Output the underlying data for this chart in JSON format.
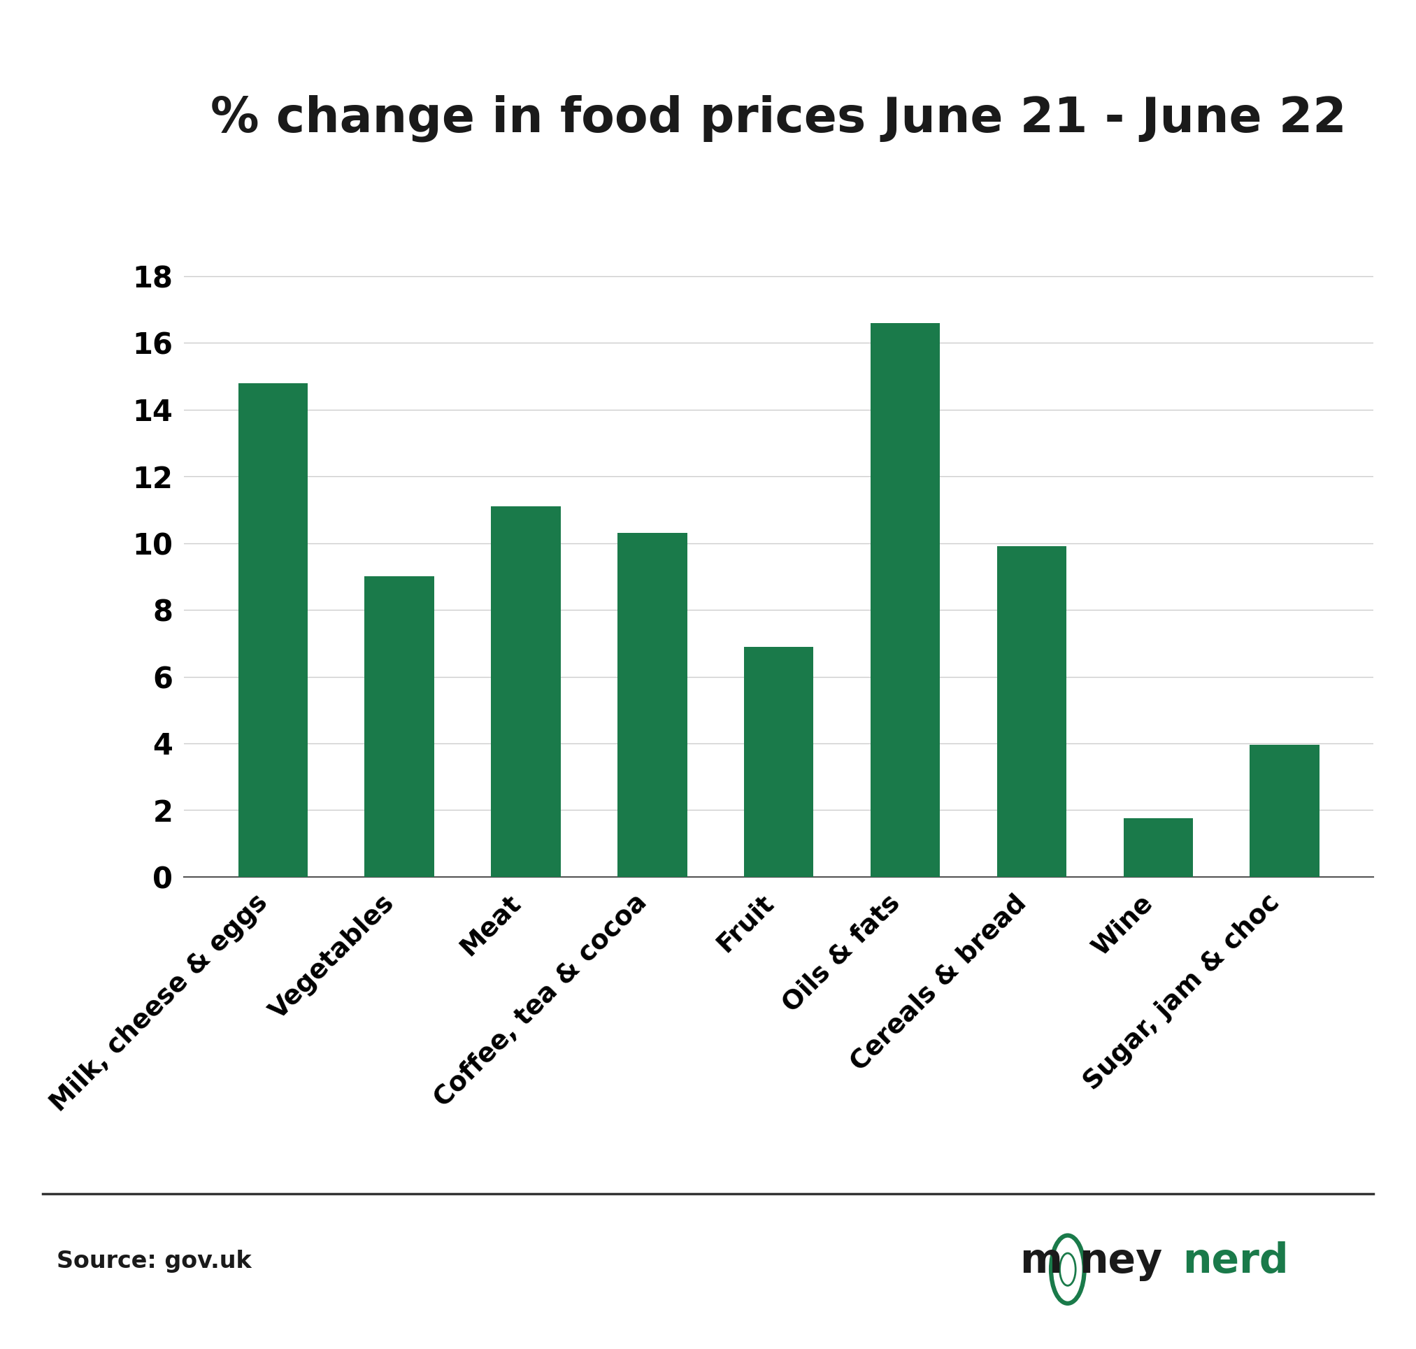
{
  "title": "% change in food prices June 21 - June 22",
  "categories": [
    "Milk, cheese & eggs",
    "Vegetables",
    "Meat",
    "Coffee, tea & cocoa",
    "Fruit",
    "Oils & fats",
    "Cereals & bread",
    "Wine",
    "Sugar, jam & choc"
  ],
  "values": [
    14.8,
    9.0,
    11.1,
    10.3,
    6.9,
    16.6,
    9.9,
    1.75,
    3.95
  ],
  "bar_color": "#1a7a4a",
  "background_color": "#ffffff",
  "ylim": [
    0,
    19
  ],
  "yticks": [
    0,
    2,
    4,
    6,
    8,
    10,
    12,
    14,
    16,
    18
  ],
  "source_text": "Source: gov.uk",
  "title_fontsize": 50,
  "tick_fontsize": 30,
  "label_fontsize": 27,
  "source_fontsize": 24,
  "grid_color": "#cccccc",
  "logo_black_color": "#1a1a1a",
  "logo_green_color": "#1a7a4a",
  "separator_color": "#333333"
}
